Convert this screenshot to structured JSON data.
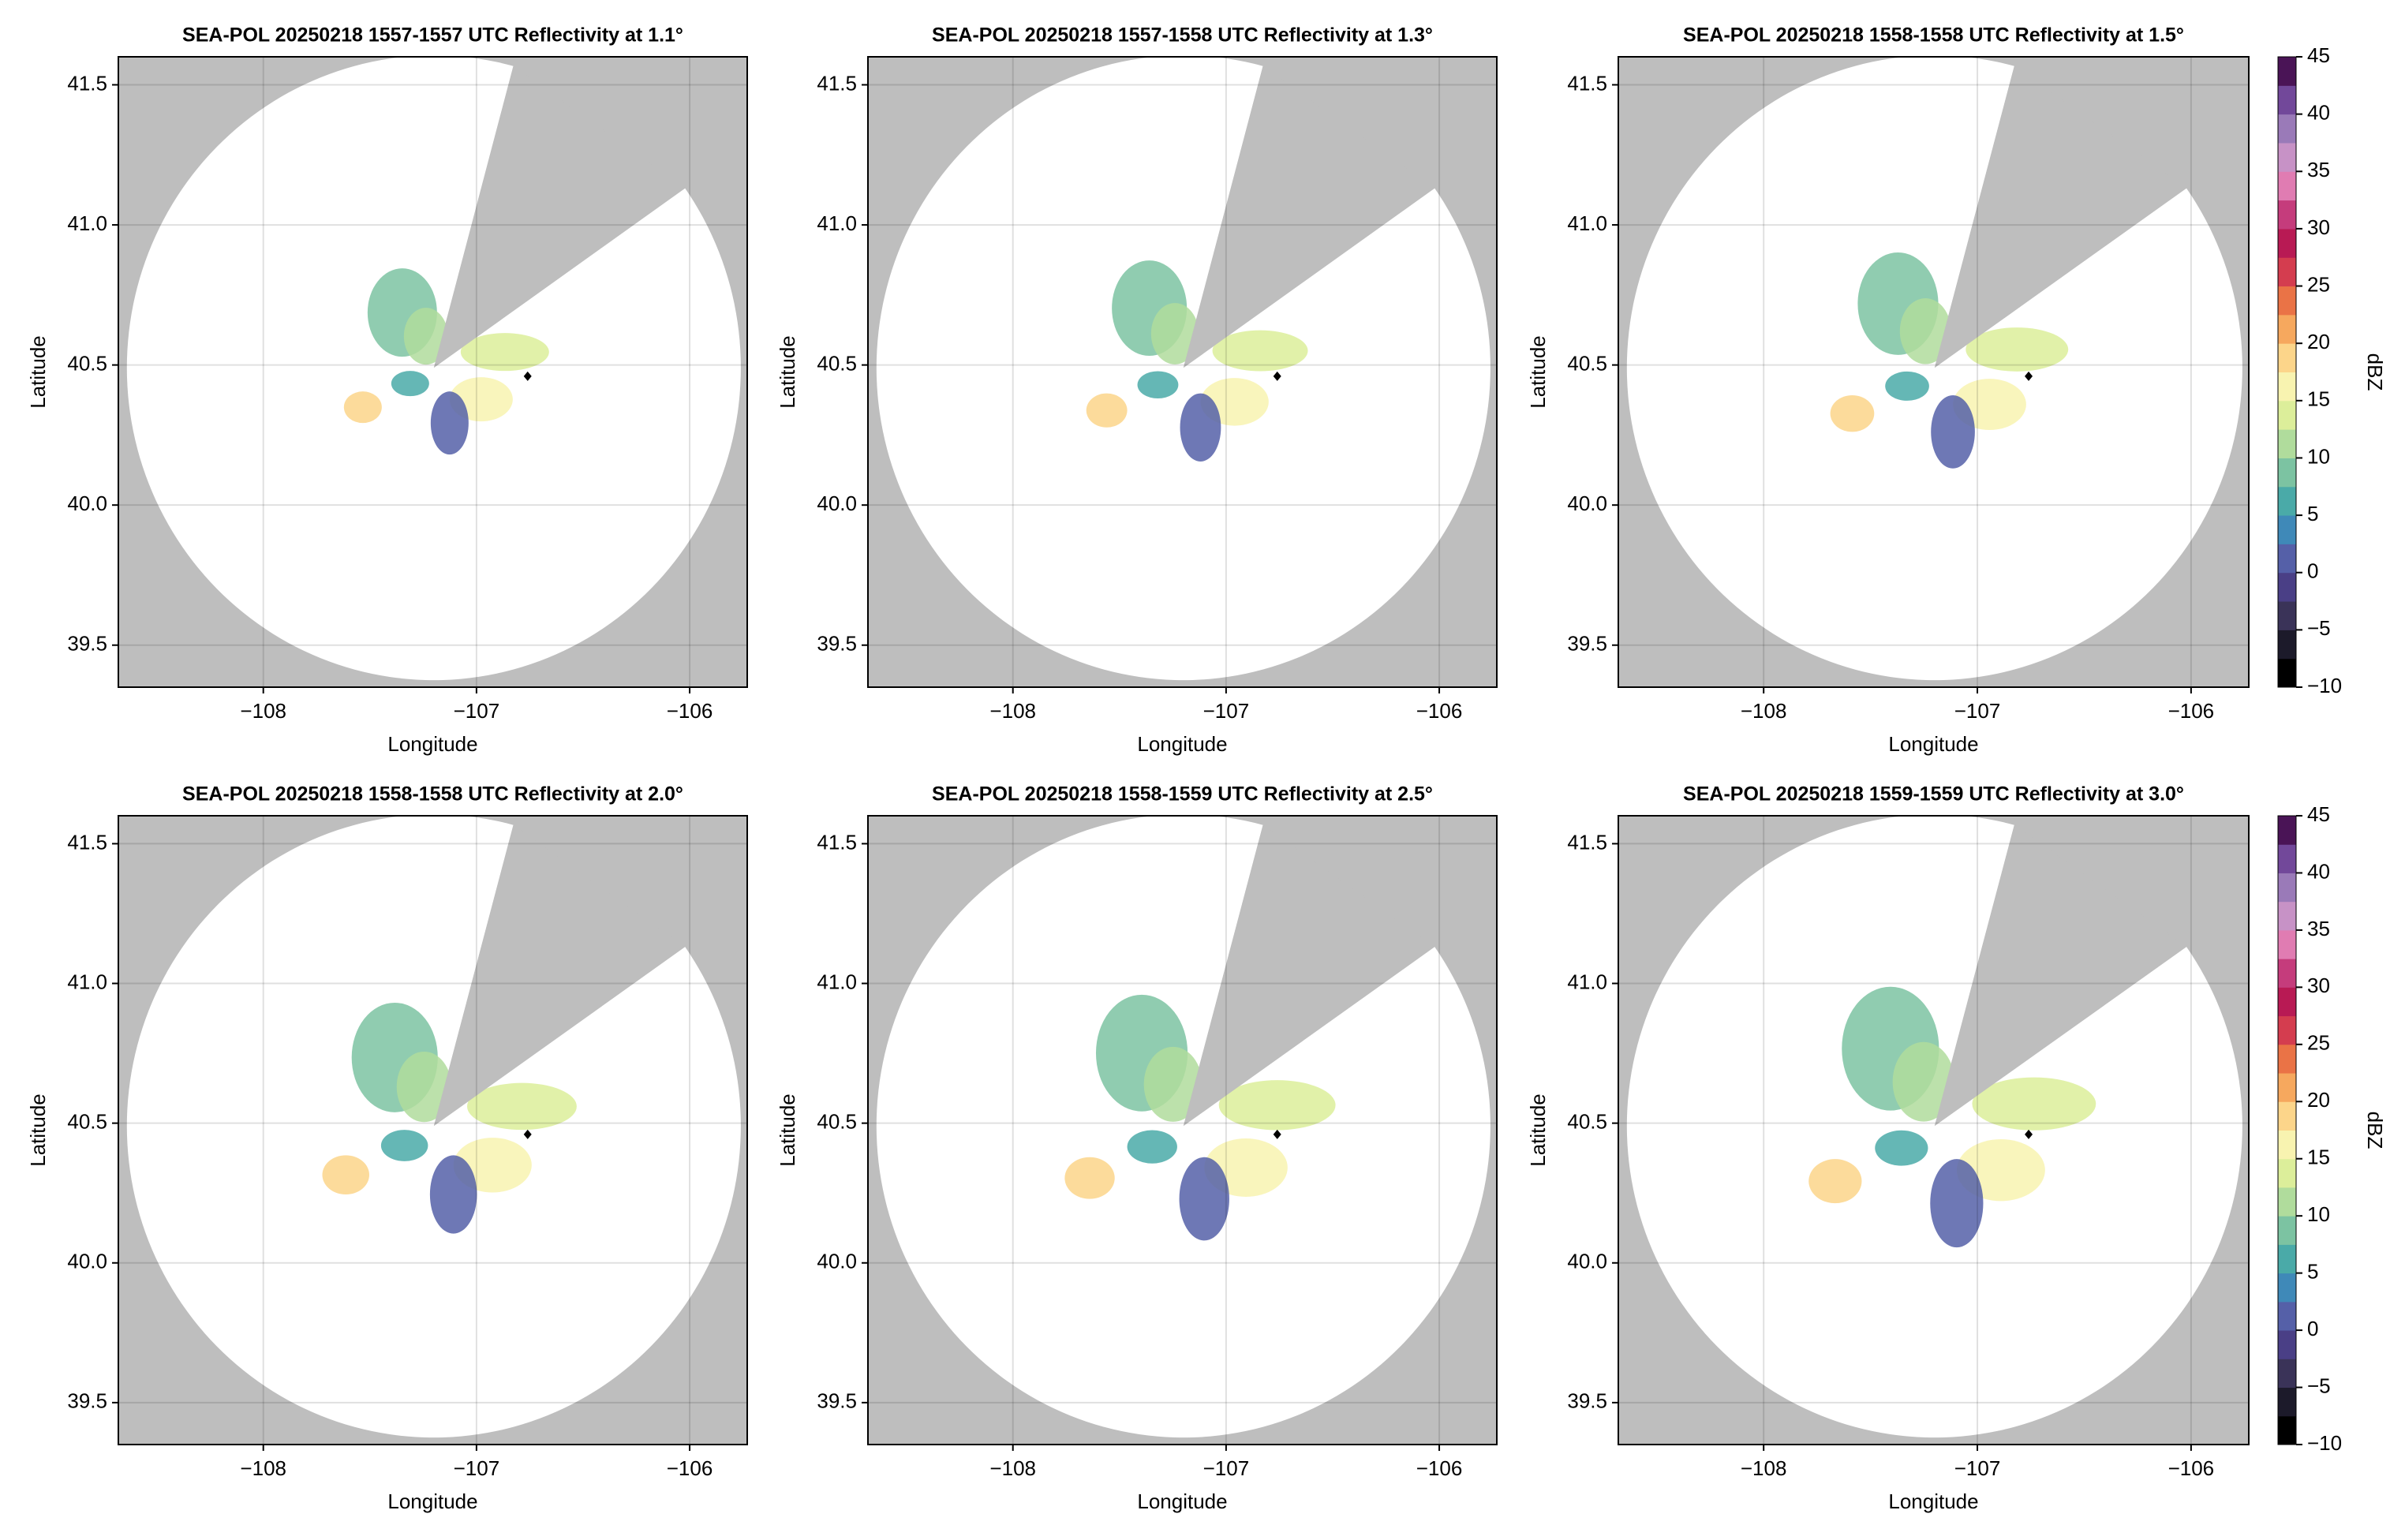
{
  "chart_data": [
    {
      "type": "radar-ppi",
      "title": "SEA-POL 20250218 1557-1557 UTC Reflectivity at 1.1°",
      "xlabel": "Longitude",
      "ylabel": "Latitude",
      "xlim": [
        -108.68,
        -105.73
      ],
      "ylim": [
        39.35,
        41.6
      ],
      "xticks": [
        {
          "value": -108,
          "label": "−108"
        },
        {
          "value": -107,
          "label": "−107"
        },
        {
          "value": -106,
          "label": "−106"
        }
      ],
      "yticks": [
        39.5,
        {
          "value": 40,
          "label": "40.0"
        },
        40.5,
        {
          "value": 41,
          "label": "41.0"
        },
        41.5
      ],
      "grid": true,
      "points": [
        {
          "x": -106.76,
          "y": 40.46
        }
      ]
    },
    {
      "type": "radar-ppi",
      "title": "SEA-POL 20250218 1557-1558 UTC Reflectivity at 1.3°",
      "xlabel": "Longitude",
      "ylabel": "Latitude",
      "xlim": [
        -108.68,
        -105.73
      ],
      "ylim": [
        39.35,
        41.6
      ],
      "xticks": [
        {
          "value": -108,
          "label": "−108"
        },
        {
          "value": -107,
          "label": "−107"
        },
        {
          "value": -106,
          "label": "−106"
        }
      ],
      "yticks": [
        39.5,
        {
          "value": 40,
          "label": "40.0"
        },
        40.5,
        {
          "value": 41,
          "label": "41.0"
        },
        41.5
      ],
      "grid": true,
      "points": [
        {
          "x": -106.76,
          "y": 40.46
        }
      ]
    },
    {
      "type": "radar-ppi",
      "title": "SEA-POL 20250218 1558-1558 UTC Reflectivity at 1.5°",
      "xlabel": "Longitude",
      "ylabel": "Latitude",
      "xlim": [
        -108.68,
        -105.73
      ],
      "ylim": [
        39.35,
        41.6
      ],
      "xticks": [
        {
          "value": -108,
          "label": "−108"
        },
        {
          "value": -107,
          "label": "−107"
        },
        {
          "value": -106,
          "label": "−106"
        }
      ],
      "yticks": [
        39.5,
        {
          "value": 40,
          "label": "40.0"
        },
        40.5,
        {
          "value": 41,
          "label": "41.0"
        },
        41.5
      ],
      "grid": true,
      "points": [
        {
          "x": -106.76,
          "y": 40.46
        }
      ]
    },
    {
      "type": "radar-ppi",
      "title": "SEA-POL 20250218 1558-1558 UTC Reflectivity at 2.0°",
      "xlabel": "Longitude",
      "ylabel": "Latitude",
      "xlim": [
        -108.68,
        -105.73
      ],
      "ylim": [
        39.35,
        41.6
      ],
      "xticks": [
        {
          "value": -108,
          "label": "−108"
        },
        {
          "value": -107,
          "label": "−107"
        },
        {
          "value": -106,
          "label": "−106"
        }
      ],
      "yticks": [
        39.5,
        {
          "value": 40,
          "label": "40.0"
        },
        40.5,
        {
          "value": 41,
          "label": "41.0"
        },
        41.5
      ],
      "grid": true,
      "points": [
        {
          "x": -106.76,
          "y": 40.46
        }
      ]
    },
    {
      "type": "radar-ppi",
      "title": "SEA-POL 20250218 1558-1559 UTC Reflectivity at 2.5°",
      "xlabel": "Longitude",
      "ylabel": "Latitude",
      "xlim": [
        -108.68,
        -105.73
      ],
      "ylim": [
        39.35,
        41.6
      ],
      "xticks": [
        {
          "value": -108,
          "label": "−108"
        },
        {
          "value": -107,
          "label": "−107"
        },
        {
          "value": -106,
          "label": "−106"
        }
      ],
      "yticks": [
        39.5,
        {
          "value": 40,
          "label": "40.0"
        },
        40.5,
        {
          "value": 41,
          "label": "41.0"
        },
        41.5
      ],
      "grid": true,
      "points": [
        {
          "x": -106.76,
          "y": 40.46
        }
      ]
    },
    {
      "type": "radar-ppi",
      "title": "SEA-POL 20250218 1559-1559 UTC Reflectivity at 3.0°",
      "xlabel": "Longitude",
      "ylabel": "Latitude",
      "xlim": [
        -108.68,
        -105.73
      ],
      "ylim": [
        39.35,
        41.6
      ],
      "xticks": [
        {
          "value": -108,
          "label": "−108"
        },
        {
          "value": -107,
          "label": "−107"
        },
        {
          "value": -106,
          "label": "−106"
        }
      ],
      "yticks": [
        39.5,
        {
          "value": 40,
          "label": "40.0"
        },
        40.5,
        {
          "value": 41,
          "label": "41.0"
        },
        41.5
      ],
      "grid": true,
      "points": [
        {
          "x": -106.76,
          "y": 40.46
        }
      ]
    }
  ],
  "colorbar": {
    "label": "dBZ",
    "lim": [
      -10,
      45
    ],
    "ticks": [
      {
        "value": -10,
        "label": "−10"
      },
      {
        "value": -5,
        "label": "−5"
      },
      0,
      5,
      10,
      15,
      20,
      25,
      30,
      35,
      40,
      45
    ],
    "colors": [
      "#000000",
      "#1c1a2a",
      "#3a3358",
      "#4a3f86",
      "#5560a8",
      "#3f89b8",
      "#4aaaa8",
      "#7cc3a2",
      "#b0dc9c",
      "#dcee9a",
      "#f8f3b0",
      "#fcd58a",
      "#f6a85e",
      "#ea7346",
      "#d43d4f",
      "#b81a54",
      "#c53c7c",
      "#e07cb2",
      "#c792c6",
      "#9a7ab8",
      "#72489a",
      "#4a1456"
    ]
  }
}
